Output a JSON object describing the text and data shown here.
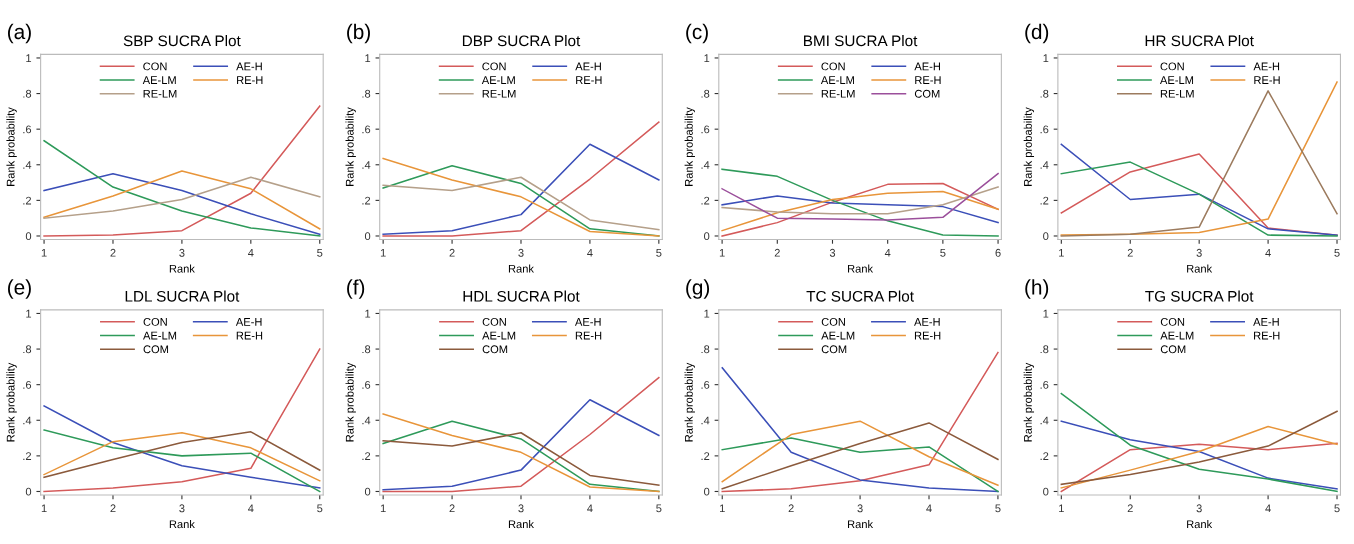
{
  "chart_data": [
    {
      "type": "line",
      "title": "SBP SUCRA Plot",
      "xlabel": "Rank",
      "ylabel": "Rank probability",
      "annotations": [
        "(a)"
      ],
      "x": [
        1,
        2,
        3,
        4,
        5
      ],
      "xlim": [
        0.95,
        5.05
      ],
      "xticks": [
        1,
        2,
        3,
        4,
        5
      ],
      "ylim": [
        -0.02,
        1.02
      ],
      "yticks": [
        0,
        {
          "value": 0.2,
          "label": ".2"
        },
        {
          "value": 0.4,
          "label": ".4"
        },
        {
          "value": 0.6,
          "label": ".6"
        },
        {
          "value": 0.8,
          "label": ".8"
        },
        1
      ],
      "legend": "top",
      "grid": false,
      "series": [
        {
          "name": "CON",
          "color": "#d45a5a",
          "values": [
            0,
            0.005,
            0.03,
            0.24,
            0.73
          ]
        },
        {
          "name": "AE-H",
          "color": "#3b4fb8",
          "values": [
            0.255,
            0.35,
            0.255,
            0.125,
            0.01
          ]
        },
        {
          "name": "AE-LM",
          "color": "#2e9a5a",
          "values": [
            0.535,
            0.275,
            0.14,
            0.045,
            0.0
          ]
        },
        {
          "name": "RE-H",
          "color": "#e8953a",
          "values": [
            0.105,
            0.225,
            0.365,
            0.265,
            0.04
          ]
        },
        {
          "name": "RE-LM",
          "color": "#b5a08a",
          "values": [
            0.1,
            0.14,
            0.205,
            0.33,
            0.22
          ]
        }
      ]
    },
    {
      "type": "line",
      "title": "DBP SUCRA Plot",
      "xlabel": "Rank",
      "ylabel": "Rank probability",
      "annotations": [
        "(b)"
      ],
      "x": [
        1,
        2,
        3,
        4,
        5
      ],
      "xlim": [
        0.95,
        5.05
      ],
      "xticks": [
        1,
        2,
        3,
        4,
        5
      ],
      "ylim": [
        -0.02,
        1.02
      ],
      "yticks": [
        0,
        {
          "value": 0.2,
          "label": ".2"
        },
        {
          "value": 0.4,
          "label": ".4"
        },
        {
          "value": 0.6,
          "label": ".6"
        },
        {
          "value": 0.8,
          "label": ".8"
        },
        1
      ],
      "legend": "top",
      "grid": false,
      "series": [
        {
          "name": "CON",
          "color": "#d45a5a",
          "values": [
            0,
            0,
            0.03,
            0.32,
            0.64
          ]
        },
        {
          "name": "AE-H",
          "color": "#3b4fb8",
          "values": [
            0.01,
            0.03,
            0.12,
            0.515,
            0.315
          ]
        },
        {
          "name": "AE-LM",
          "color": "#2e9a5a",
          "values": [
            0.27,
            0.395,
            0.295,
            0.04,
            0
          ]
        },
        {
          "name": "RE-H",
          "color": "#e8953a",
          "values": [
            0.435,
            0.315,
            0.22,
            0.025,
            0
          ]
        },
        {
          "name": "RE-LM",
          "color": "#b5a08a",
          "values": [
            0.285,
            0.255,
            0.33,
            0.09,
            0.035
          ]
        }
      ]
    },
    {
      "type": "line",
      "title": "BMI SUCRA Plot",
      "xlabel": "Rank",
      "ylabel": "Rank probability",
      "annotations": [
        "(c)"
      ],
      "x": [
        1,
        2,
        3,
        4,
        5,
        6
      ],
      "xlim": [
        0.94,
        6.06
      ],
      "xticks": [
        1,
        2,
        3,
        4,
        5,
        6
      ],
      "ylim": [
        -0.02,
        1.02
      ],
      "yticks": [
        0,
        {
          "value": 0.2,
          "label": ".2"
        },
        {
          "value": 0.4,
          "label": ".4"
        },
        {
          "value": 0.6,
          "label": ".6"
        },
        {
          "value": 0.8,
          "label": ".8"
        },
        1
      ],
      "legend": "top",
      "grid": false,
      "series": [
        {
          "name": "CON",
          "color": "#d45a5a",
          "values": [
            0,
            0.075,
            0.19,
            0.29,
            0.295,
            0.15
          ]
        },
        {
          "name": "AE-H",
          "color": "#3b4fb8",
          "values": [
            0.175,
            0.225,
            0.185,
            0.175,
            0.165,
            0.075
          ]
        },
        {
          "name": "AE-LM",
          "color": "#2e9a5a",
          "values": [
            0.375,
            0.335,
            0.2,
            0.085,
            0.005,
            0
          ]
        },
        {
          "name": "RE-H",
          "color": "#e8953a",
          "values": [
            0.03,
            0.13,
            0.205,
            0.24,
            0.25,
            0.15
          ]
        },
        {
          "name": "RE-LM",
          "color": "#b5a08a",
          "values": [
            0.16,
            0.135,
            0.125,
            0.125,
            0.175,
            0.275
          ]
        },
        {
          "name": "COM",
          "color": "#9b4f9b",
          "values": [
            0.265,
            0.1,
            0.095,
            0.09,
            0.105,
            0.35
          ]
        }
      ]
    },
    {
      "type": "line",
      "title": "HR SUCRA Plot",
      "xlabel": "Rank",
      "ylabel": "Rank probability",
      "annotations": [
        "(d)"
      ],
      "x": [
        1,
        2,
        3,
        4,
        5
      ],
      "xlim": [
        0.95,
        5.05
      ],
      "xticks": [
        1,
        2,
        3,
        4,
        5
      ],
      "ylim": [
        -0.02,
        1.02
      ],
      "yticks": [
        0,
        {
          "value": 0.2,
          "label": ".2"
        },
        {
          "value": 0.4,
          "label": ".4"
        },
        {
          "value": 0.6,
          "label": ".6"
        },
        {
          "value": 0.8,
          "label": ".8"
        },
        1
      ],
      "legend": "top",
      "grid": false,
      "series": [
        {
          "name": "CON",
          "color": "#d45a5a",
          "values": [
            0.13,
            0.36,
            0.46,
            0.045,
            0.005
          ]
        },
        {
          "name": "AE-H",
          "color": "#3b4fb8",
          "values": [
            0.515,
            0.205,
            0.235,
            0.04,
            0.005
          ]
        },
        {
          "name": "AE-LM",
          "color": "#2e9a5a",
          "values": [
            0.35,
            0.415,
            0.235,
            0.005,
            0
          ]
        },
        {
          "name": "RE-H",
          "color": "#e8953a",
          "values": [
            0.005,
            0.01,
            0.02,
            0.095,
            0.865
          ]
        },
        {
          "name": "RE-LM",
          "color": "#9c7b5e",
          "values": [
            0,
            0.01,
            0.05,
            0.815,
            0.125
          ]
        }
      ]
    },
    {
      "type": "line",
      "title": "LDL SUCRA Plot",
      "xlabel": "Rank",
      "ylabel": "Rank probability",
      "annotations": [
        "(e)"
      ],
      "x": [
        1,
        2,
        3,
        4,
        5
      ],
      "xlim": [
        0.95,
        5.05
      ],
      "xticks": [
        1,
        2,
        3,
        4,
        5
      ],
      "ylim": [
        -0.02,
        1.02
      ],
      "yticks": [
        0,
        {
          "value": 0.2,
          "label": ".2"
        },
        {
          "value": 0.4,
          "label": ".4"
        },
        {
          "value": 0.6,
          "label": ".6"
        },
        {
          "value": 0.8,
          "label": ".8"
        },
        1
      ],
      "legend": "top",
      "grid": false,
      "series": [
        {
          "name": "CON",
          "color": "#d45a5a",
          "values": [
            0,
            0.02,
            0.055,
            0.13,
            0.8
          ]
        },
        {
          "name": "AE-H",
          "color": "#3b4fb8",
          "values": [
            0.48,
            0.275,
            0.145,
            0.08,
            0.02
          ]
        },
        {
          "name": "AE-LM",
          "color": "#2e9a5a",
          "values": [
            0.345,
            0.245,
            0.2,
            0.215,
            0.0
          ]
        },
        {
          "name": "RE-H",
          "color": "#e8953a",
          "values": [
            0.095,
            0.28,
            0.33,
            0.245,
            0.06
          ]
        },
        {
          "name": "COM",
          "color": "#8b5a3c",
          "values": [
            0.08,
            0.18,
            0.275,
            0.335,
            0.12
          ]
        }
      ]
    },
    {
      "type": "line",
      "title": "HDL SUCRA Plot",
      "xlabel": "Rank",
      "ylabel": "Rank probability",
      "annotations": [
        "(f)"
      ],
      "x": [
        1,
        2,
        3,
        4,
        5
      ],
      "xlim": [
        0.95,
        5.05
      ],
      "xticks": [
        1,
        2,
        3,
        4,
        5
      ],
      "ylim": [
        -0.02,
        1.02
      ],
      "yticks": [
        0,
        {
          "value": 0.2,
          "label": ".2"
        },
        {
          "value": 0.4,
          "label": ".4"
        },
        {
          "value": 0.6,
          "label": ".6"
        },
        {
          "value": 0.8,
          "label": ".8"
        },
        1
      ],
      "legend": "top",
      "grid": false,
      "series": [
        {
          "name": "CON",
          "color": "#d45a5a",
          "values": [
            0,
            0,
            0.03,
            0.32,
            0.64
          ]
        },
        {
          "name": "AE-H",
          "color": "#3b4fb8",
          "values": [
            0.01,
            0.03,
            0.12,
            0.515,
            0.315
          ]
        },
        {
          "name": "AE-LM",
          "color": "#2e9a5a",
          "values": [
            0.27,
            0.395,
            0.295,
            0.04,
            0
          ]
        },
        {
          "name": "RE-H",
          "color": "#e8953a",
          "values": [
            0.435,
            0.315,
            0.22,
            0.025,
            0
          ]
        },
        {
          "name": "COM",
          "color": "#8b5a3c",
          "values": [
            0.285,
            0.255,
            0.33,
            0.09,
            0.035
          ]
        }
      ]
    },
    {
      "type": "line",
      "title": "TC SUCRA Plot",
      "xlabel": "Rank",
      "ylabel": "Rank probability",
      "annotations": [
        "(g)"
      ],
      "x": [
        1,
        2,
        3,
        4,
        5
      ],
      "xlim": [
        0.95,
        5.05
      ],
      "xticks": [
        1,
        2,
        3,
        4,
        5
      ],
      "ylim": [
        -0.02,
        1.02
      ],
      "yticks": [
        0,
        {
          "value": 0.2,
          "label": ".2"
        },
        {
          "value": 0.4,
          "label": ".4"
        },
        {
          "value": 0.6,
          "label": ".6"
        },
        {
          "value": 0.8,
          "label": ".8"
        },
        1
      ],
      "legend": "top",
      "grid": false,
      "series": [
        {
          "name": "CON",
          "color": "#d45a5a",
          "values": [
            0,
            0.015,
            0.06,
            0.15,
            0.78
          ]
        },
        {
          "name": "AE-H",
          "color": "#3b4fb8",
          "values": [
            0.695,
            0.22,
            0.065,
            0.02,
            0.0
          ]
        },
        {
          "name": "AE-LM",
          "color": "#2e9a5a",
          "values": [
            0.235,
            0.3,
            0.22,
            0.25,
            0
          ]
        },
        {
          "name": "RE-H",
          "color": "#e8953a",
          "values": [
            0.055,
            0.32,
            0.395,
            0.195,
            0.035
          ]
        },
        {
          "name": "COM",
          "color": "#8b5a3c",
          "values": [
            0.015,
            0.145,
            0.27,
            0.385,
            0.18
          ]
        }
      ]
    },
    {
      "type": "line",
      "title": "TG SUCRA Plot",
      "xlabel": "Rank",
      "ylabel": "Rank probability",
      "annotations": [
        "(h)"
      ],
      "x": [
        1,
        2,
        3,
        4,
        5
      ],
      "xlim": [
        0.95,
        5.05
      ],
      "xticks": [
        1,
        2,
        3,
        4,
        5
      ],
      "ylim": [
        -0.02,
        1.02
      ],
      "yticks": [
        0,
        {
          "value": 0.2,
          "label": ".2"
        },
        {
          "value": 0.4,
          "label": ".4"
        },
        {
          "value": 0.6,
          "label": ".6"
        },
        {
          "value": 0.8,
          "label": ".8"
        },
        1
      ],
      "legend": "top",
      "grid": false,
      "series": [
        {
          "name": "CON",
          "color": "#d45a5a",
          "values": [
            0,
            0.235,
            0.265,
            0.235,
            0.27
          ]
        },
        {
          "name": "AE-H",
          "color": "#3b4fb8",
          "values": [
            0.395,
            0.29,
            0.225,
            0.075,
            0.015
          ]
        },
        {
          "name": "AE-LM",
          "color": "#2e9a5a",
          "values": [
            0.55,
            0.26,
            0.125,
            0.07,
            0
          ]
        },
        {
          "name": "RE-H",
          "color": "#e8953a",
          "values": [
            0.02,
            0.12,
            0.225,
            0.365,
            0.265
          ]
        },
        {
          "name": "COM",
          "color": "#8b5a3c",
          "values": [
            0.04,
            0.095,
            0.165,
            0.255,
            0.45
          ]
        }
      ]
    }
  ]
}
